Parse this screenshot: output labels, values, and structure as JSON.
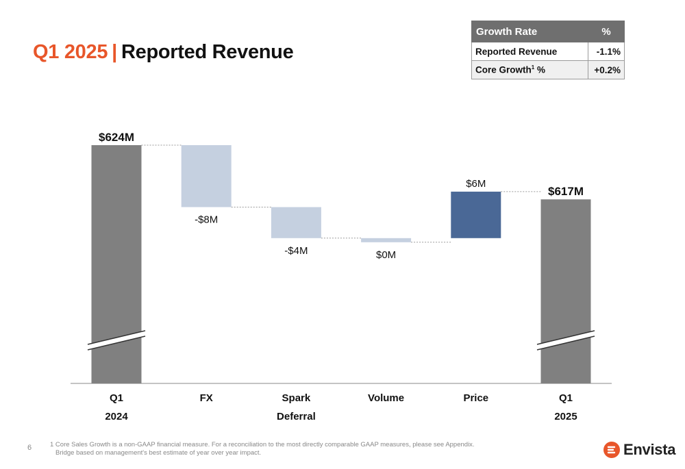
{
  "header": {
    "title_period": "Q1 2025",
    "title_separator": "|",
    "title_main": "Reported Revenue"
  },
  "growth_table": {
    "header": {
      "label": "Growth Rate",
      "unit": "%"
    },
    "rows": [
      {
        "label": "Reported Revenue",
        "sup": "",
        "suffix": "",
        "value": "-1.1%"
      },
      {
        "label": "Core Growth",
        "sup": "1",
        "suffix": " %",
        "value": "+0.2%"
      }
    ]
  },
  "chart_data": {
    "type": "bar",
    "subtype": "waterfall",
    "title": "",
    "unit": "$M",
    "categories": [
      {
        "line1": "Q1",
        "line2": "2024"
      },
      {
        "line1": "FX",
        "line2": ""
      },
      {
        "line1": "Spark",
        "line2": "Deferral"
      },
      {
        "line1": "Volume",
        "line2": ""
      },
      {
        "line1": "Price",
        "line2": ""
      },
      {
        "line1": "Q1",
        "line2": "2025"
      }
    ],
    "values": [
      624,
      -8,
      -4,
      0,
      6,
      617
    ],
    "kinds": [
      "total",
      "decrease",
      "decrease",
      "decrease",
      "increase",
      "total"
    ],
    "labels": [
      "$624M",
      "-$8M",
      "-$4M",
      "$0M",
      "$6M",
      "$617M"
    ],
    "axis_break": true,
    "grid": false,
    "colors": {
      "total": "#808080",
      "decrease": "#c5d0e0",
      "increase": "#4a6896",
      "connector": "#9a9a9a",
      "axis": "#888888"
    }
  },
  "footer": {
    "page_number": "6",
    "footnote_line1": "1 Core Sales Growth is a non-GAAP financial measure. For a reconciliation to the most directly comparable GAAP measures, please see Appendix.",
    "footnote_line2": "Bridge based on management's best estimate of year over year impact."
  },
  "logo": {
    "text": "Envista",
    "icon": "envista-logo-icon",
    "color": "#e8562a"
  }
}
